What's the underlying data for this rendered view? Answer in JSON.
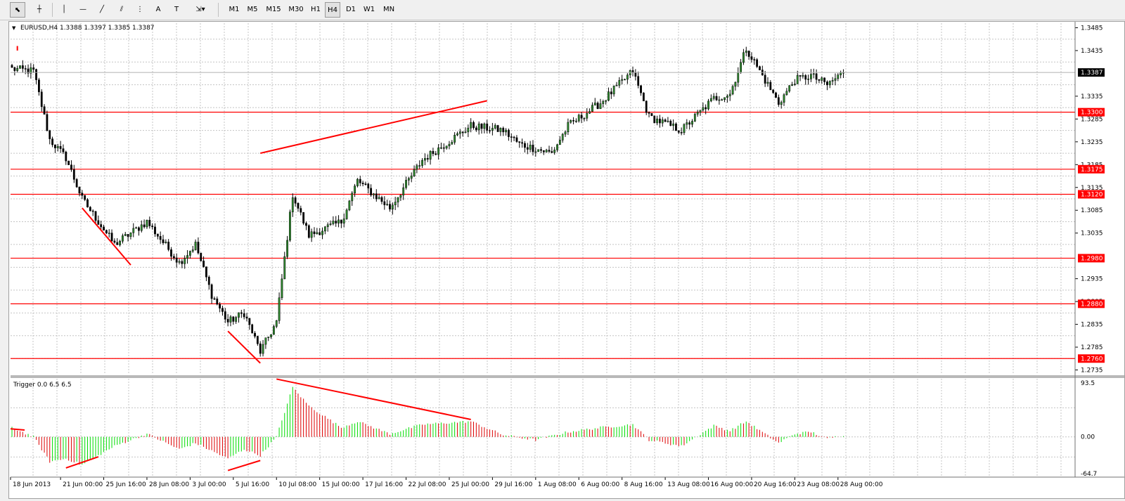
{
  "toolbar": {
    "tools": [
      {
        "name": "cursor-icon",
        "glyph": "⬉"
      },
      {
        "name": "crosshair-icon",
        "glyph": "┼"
      },
      {
        "name": "vertical-line-icon",
        "glyph": "│"
      },
      {
        "name": "horizontal-line-icon",
        "glyph": "—"
      },
      {
        "name": "trendline-icon",
        "glyph": "╱"
      },
      {
        "name": "channel-icon",
        "glyph": "⫽"
      },
      {
        "name": "fibonacci-icon",
        "glyph": "⋮"
      },
      {
        "name": "text-icon",
        "glyph": "A"
      },
      {
        "name": "text-label-icon",
        "glyph": "T"
      },
      {
        "name": "arrows-icon",
        "glyph": "⇲▾"
      }
    ],
    "timeframes": [
      "M1",
      "M5",
      "M15",
      "M30",
      "H1",
      "H4",
      "D1",
      "W1",
      "MN"
    ],
    "active_timeframe": "H4"
  },
  "chart": {
    "header": "EURUSD,H4  1.3388 1.3397 1.3385 1.3387",
    "price_axis": [
      "1.3485",
      "1.3435",
      "1.3335",
      "1.3285",
      "1.3235",
      "1.3185",
      "1.3135",
      "1.3085",
      "1.3035",
      "1.2935",
      "1.2885",
      "1.2835",
      "1.2785",
      "1.2735"
    ],
    "current_price": "1.3387",
    "levels": [
      "1.3300",
      "1.3175",
      "1.3120",
      "1.2980",
      "1.2880",
      "1.2760"
    ],
    "time_axis": [
      "18 Jun 2013",
      "21 Jun 00:00",
      "25 Jun 16:00",
      "28 Jun 08:00",
      "3 Jul 00:00",
      "5 Jul 16:00",
      "10 Jul 08:00",
      "15 Jul 00:00",
      "17 Jul 16:00",
      "22 Jul 08:00",
      "25 Jul 00:00",
      "29 Jul 16:00",
      "1 Aug 08:00",
      "6 Aug 00:00",
      "8 Aug 16:00",
      "13 Aug 08:00",
      "16 Aug 00:00",
      "20 Aug 16:00",
      "23 Aug 08:00",
      "28 Aug 00:00"
    ]
  },
  "indicator": {
    "header": "Trigger 0.0 6.5 6.5",
    "axis": [
      "93.5",
      "0.00",
      "-64.7"
    ]
  },
  "colors": {
    "bull_candle": "#2e8b2e",
    "bear_candle": "#000000",
    "level_line": "#ff0000",
    "level_label_bg": "#ff0000",
    "osc_up": "#00dd00",
    "osc_down": "#dd0000",
    "grid": "#c4c4c4"
  },
  "chart_data": {
    "type": "candlestick",
    "symbol": "EURUSD",
    "timeframe": "H4",
    "ylim": [
      1.2725,
      1.3495
    ],
    "last_ohlc": [
      1.3388,
      1.3397,
      1.3385,
      1.3387
    ],
    "path_keypoints": [
      {
        "t": "18 Jun 2013",
        "v": 1.3395
      },
      {
        "t": "19 Jun 2013",
        "v": 1.339
      },
      {
        "t": "20 Jun 2013",
        "v": 1.324
      },
      {
        "t": "21 Jun 2013",
        "v": 1.32
      },
      {
        "t": "24 Jun 2013",
        "v": 1.311
      },
      {
        "t": "26 Jun 2013",
        "v": 1.301
      },
      {
        "t": "28 Jun 2013",
        "v": 1.306
      },
      {
        "t": "2 Jul 2013",
        "v": 1.297
      },
      {
        "t": "3 Jul 2013",
        "v": 1.301
      },
      {
        "t": "4 Jul 2013",
        "v": 1.29
      },
      {
        "t": "5 Jul 2013",
        "v": 1.284
      },
      {
        "t": "8 Jul 2013",
        "v": 1.286
      },
      {
        "t": "9 Jul 2013",
        "v": 1.2775
      },
      {
        "t": "10 Jul 2013",
        "v": 1.284
      },
      {
        "t": "11 Jul 2013",
        "v": 1.312
      },
      {
        "t": "12 Jul 2013",
        "v": 1.303
      },
      {
        "t": "16 Jul 2013",
        "v": 1.306
      },
      {
        "t": "17 Jul 2013",
        "v": 1.315
      },
      {
        "t": "19 Jul 2013",
        "v": 1.309
      },
      {
        "t": "23 Jul 2013",
        "v": 1.3195
      },
      {
        "t": "26 Jul 2013",
        "v": 1.327
      },
      {
        "t": "30 Jul 2013",
        "v": 1.326
      },
      {
        "t": "31 Jul 2013",
        "v": 1.323
      },
      {
        "t": "2 Aug 2013",
        "v": 1.321
      },
      {
        "t": "5 Aug 2013",
        "v": 1.327
      },
      {
        "t": "7 Aug 2013",
        "v": 1.332
      },
      {
        "t": "9 Aug 2013",
        "v": 1.339
      },
      {
        "t": "12 Aug 2013",
        "v": 1.329
      },
      {
        "t": "14 Aug 2013",
        "v": 1.326
      },
      {
        "t": "16 Aug 2013",
        "v": 1.333
      },
      {
        "t": "19 Aug 2013",
        "v": 1.334
      },
      {
        "t": "20 Aug 2013",
        "v": 1.344
      },
      {
        "t": "22 Aug 2013",
        "v": 1.332
      },
      {
        "t": "23 Aug 2013",
        "v": 1.337
      },
      {
        "t": "26 Aug 2013",
        "v": 1.338
      },
      {
        "t": "27 Aug 2013",
        "v": 1.336
      },
      {
        "t": "28 Aug 2013",
        "v": 1.3387
      }
    ],
    "horizontal_levels": [
      1.33,
      1.3175,
      1.312,
      1.298,
      1.288,
      1.276
    ],
    "trendlines": [
      {
        "from": [
          "18 Jun 2013",
          1.3445
        ],
        "to": [
          "18 Jun 2013",
          1.3435
        ]
      },
      {
        "from": [
          "24 Jun 2013",
          1.309
        ],
        "to": [
          "27 Jun 2013",
          1.2965
        ]
      },
      {
        "from": [
          "5 Jul 2013",
          1.282
        ],
        "to": [
          "9 Jul 2013",
          1.275
        ]
      },
      {
        "from": [
          "9 Jul 2013",
          1.321
        ],
        "to": [
          "29 Jul 2013",
          1.3325
        ]
      }
    ],
    "oscillator": {
      "name": "Trigger",
      "params": [
        0.0,
        6.5,
        6.5
      ],
      "ylim": [
        -64.7,
        93.5
      ],
      "keypoints": [
        {
          "t": "18 Jun 2013",
          "v": 15
        },
        {
          "t": "19 Jun 2013",
          "v": 0
        },
        {
          "t": "20 Jun 2013",
          "v": -40
        },
        {
          "t": "21 Jun 2013",
          "v": -35
        },
        {
          "t": "24 Jun 2013",
          "v": -45
        },
        {
          "t": "26 Jun 2013",
          "v": -15
        },
        {
          "t": "28 Jun 2013",
          "v": 5
        },
        {
          "t": "2 Jul 2013",
          "v": -20
        },
        {
          "t": "3 Jul 2013",
          "v": -10
        },
        {
          "t": "5 Jul 2013",
          "v": -35
        },
        {
          "t": "8 Jul 2013",
          "v": -20
        },
        {
          "t": "9 Jul 2013",
          "v": -30
        },
        {
          "t": "10 Jul 2013",
          "v": 0
        },
        {
          "t": "11 Jul 2013",
          "v": 80
        },
        {
          "t": "12 Jul 2013",
          "v": 50
        },
        {
          "t": "16 Jul 2013",
          "v": 15
        },
        {
          "t": "17 Jul 2013",
          "v": 25
        },
        {
          "t": "19 Jul 2013",
          "v": 5
        },
        {
          "t": "23 Jul 2013",
          "v": 20
        },
        {
          "t": "26 Jul 2013",
          "v": 25
        },
        {
          "t": "30 Jul 2013",
          "v": 3
        },
        {
          "t": "1 Aug 2013",
          "v": -5
        },
        {
          "t": "5 Aug 2013",
          "v": 8
        },
        {
          "t": "7 Aug 2013",
          "v": 15
        },
        {
          "t": "9 Aug 2013",
          "v": 20
        },
        {
          "t": "12 Aug 2013",
          "v": -5
        },
        {
          "t": "14 Aug 2013",
          "v": -15
        },
        {
          "t": "16 Aug 2013",
          "v": 18
        },
        {
          "t": "19 Aug 2013",
          "v": 10
        },
        {
          "t": "20 Aug 2013",
          "v": 25
        },
        {
          "t": "22 Aug 2013",
          "v": -10
        },
        {
          "t": "23 Aug 2013",
          "v": 5
        },
        {
          "t": "26 Aug 2013",
          "v": 8
        },
        {
          "t": "27 Aug 2013",
          "v": -3
        },
        {
          "t": "28 Aug 2013",
          "v": 3
        }
      ]
    }
  }
}
